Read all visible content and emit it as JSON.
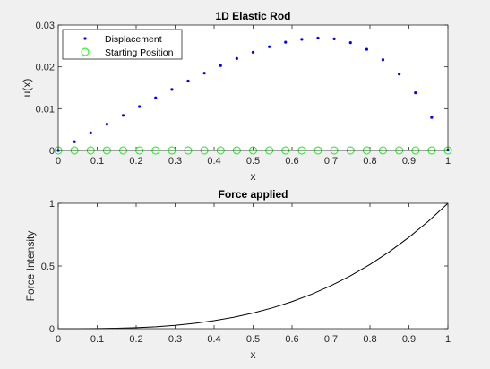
{
  "figure": {
    "background": "#f0f0f0",
    "axes_background": "#ffffff"
  },
  "chart_data": [
    {
      "type": "scatter",
      "title": "1D Elastic Rod",
      "xlabel": "x",
      "ylabel": "u(x)",
      "xlim": [
        0,
        1
      ],
      "ylim": [
        0,
        0.03
      ],
      "xticks": [
        "0",
        "0.1",
        "0.2",
        "0.3",
        "0.4",
        "0.5",
        "0.6",
        "0.7",
        "0.8",
        "0.9",
        "1"
      ],
      "yticks": [
        "0",
        "0.01",
        "0.02",
        "0.03"
      ],
      "grid": false,
      "legend_location": "top-left",
      "series": [
        {
          "name": "Displacement",
          "marker": "dot",
          "color": "#0000ff",
          "x": [
            0,
            0.0417,
            0.0833,
            0.125,
            0.1667,
            0.2083,
            0.25,
            0.2917,
            0.3333,
            0.375,
            0.4167,
            0.4583,
            0.5,
            0.5417,
            0.5833,
            0.625,
            0.6667,
            0.7083,
            0.75,
            0.7917,
            0.8333,
            0.875,
            0.9167,
            0.9583,
            1
          ],
          "y": [
            0,
            0.0021,
            0.0042,
            0.0063,
            0.0084,
            0.0105,
            0.0126,
            0.0146,
            0.0166,
            0.0185,
            0.0203,
            0.022,
            0.0235,
            0.0248,
            0.0259,
            0.0266,
            0.0269,
            0.0267,
            0.0258,
            0.0242,
            0.0217,
            0.0183,
            0.0138,
            0.0079,
            0.0001
          ]
        },
        {
          "name": "Starting Position",
          "marker": "circle",
          "color": "#00ff00",
          "x": [
            0,
            0.0417,
            0.0833,
            0.125,
            0.1667,
            0.2083,
            0.25,
            0.2917,
            0.3333,
            0.375,
            0.4167,
            0.4583,
            0.5,
            0.5417,
            0.5833,
            0.625,
            0.6667,
            0.7083,
            0.75,
            0.7917,
            0.8333,
            0.875,
            0.9167,
            0.9583,
            1
          ],
          "y": [
            0,
            0,
            0,
            0,
            0,
            0,
            0,
            0,
            0,
            0,
            0,
            0,
            0,
            0,
            0,
            0,
            0,
            0,
            0,
            0,
            0,
            0,
            0,
            0,
            0
          ]
        }
      ]
    },
    {
      "type": "line",
      "title": "Force applied",
      "xlabel": "x",
      "ylabel": "Force Intensity",
      "xlim": [
        0,
        1
      ],
      "ylim": [
        0,
        1
      ],
      "xticks": [
        "0",
        "0.1",
        "0.2",
        "0.3",
        "0.4",
        "0.5",
        "0.6",
        "0.7",
        "0.8",
        "0.9",
        "1"
      ],
      "yticks": [
        "0",
        "0.5",
        "1"
      ],
      "grid": false,
      "series": [
        {
          "color": "#000000",
          "x": [
            0,
            0.05,
            0.1,
            0.15,
            0.2,
            0.25,
            0.3,
            0.35,
            0.4,
            0.45,
            0.5,
            0.55,
            0.6,
            0.65,
            0.7,
            0.75,
            0.8,
            0.85,
            0.9,
            0.95,
            1
          ],
          "y": [
            0,
            0.0001,
            0.001,
            0.0034,
            0.008,
            0.0156,
            0.027,
            0.0429,
            0.064,
            0.0911,
            0.125,
            0.1664,
            0.216,
            0.2746,
            0.343,
            0.4219,
            0.512,
            0.6141,
            0.729,
            0.8574,
            1
          ]
        }
      ]
    }
  ]
}
